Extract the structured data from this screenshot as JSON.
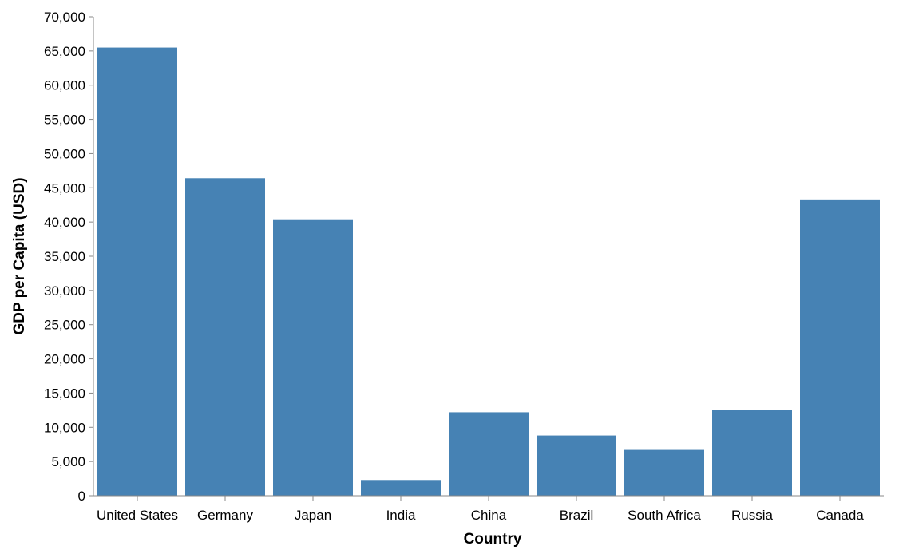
{
  "chart_data": {
    "type": "bar",
    "categories": [
      "United States",
      "Germany",
      "Japan",
      "India",
      "China",
      "Brazil",
      "South Africa",
      "Russia",
      "Canada"
    ],
    "values": [
      65500,
      46400,
      40400,
      2300,
      12200,
      8800,
      6700,
      12500,
      43300
    ],
    "xlabel": "Country",
    "ylabel": "GDP per Capita (USD)",
    "ylim": [
      0,
      70000
    ],
    "yticks": [
      0,
      5000,
      10000,
      15000,
      20000,
      25000,
      30000,
      35000,
      40000,
      45000,
      50000,
      55000,
      60000,
      65000,
      70000
    ],
    "ytick_labels": [
      "0",
      "5,000",
      "10,000",
      "15,000",
      "20,000",
      "25,000",
      "30,000",
      "35,000",
      "40,000",
      "45,000",
      "50,000",
      "55,000",
      "60,000",
      "65,000",
      "70,000"
    ],
    "grid": false,
    "bar_color": "#4682b4"
  }
}
